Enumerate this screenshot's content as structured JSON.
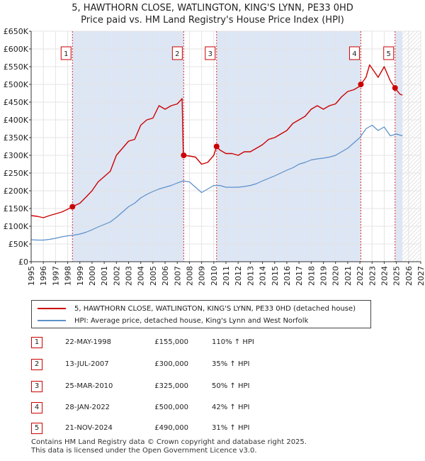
{
  "title_line1": "5, HAWTHORN CLOSE, WATLINGTON, KING'S LYNN, PE33 0HD",
  "title_line2": "Price paid vs. HM Land Registry's House Price Index (HPI)",
  "colors": {
    "property": "#cc0000",
    "hpi": "#5b8fc9",
    "shade": "#dde6f5",
    "hatch": "#cfcfcf"
  },
  "legend": {
    "property_label": "5, HAWTHORN CLOSE, WATLINGTON, KING'S LYNN, PE33 0HD (detached house)",
    "hpi_label": "HPI: Average price, detached house, King's Lynn and West Norfolk"
  },
  "transactions": [
    {
      "num": "1",
      "date": "22-MAY-1998",
      "price": "£155,000",
      "hpi": "110% ↑ HPI"
    },
    {
      "num": "2",
      "date": "13-JUL-2007",
      "price": "£300,000",
      "hpi": "35% ↑ HPI"
    },
    {
      "num": "3",
      "date": "25-MAR-2010",
      "price": "£325,000",
      "hpi": "50% ↑ HPI"
    },
    {
      "num": "4",
      "date": "28-JAN-2022",
      "price": "£500,000",
      "hpi": "42% ↑ HPI"
    },
    {
      "num": "5",
      "date": "21-NOV-2024",
      "price": "£490,000",
      "hpi": "31% ↑ HPI"
    }
  ],
  "footer_line1": "Contains HM Land Registry data © Crown copyright and database right 2025.",
  "footer_line2": "This data is licensed under the Open Government Licence v3.0.",
  "chart_data": {
    "type": "line",
    "title": "5, HAWTHORN CLOSE, WATLINGTON, KING'S LYNN, PE33 0HD",
    "subtitle": "Price paid vs. HM Land Registry's House Price Index (HPI)",
    "xlim": [
      1995,
      2027
    ],
    "ylim": [
      0,
      650000
    ],
    "x_ticks": [
      1995,
      1996,
      1997,
      1998,
      1999,
      2000,
      2001,
      2002,
      2003,
      2004,
      2005,
      2006,
      2007,
      2008,
      2009,
      2010,
      2011,
      2012,
      2013,
      2014,
      2015,
      2016,
      2017,
      2018,
      2019,
      2020,
      2021,
      2022,
      2023,
      2024,
      2025,
      2026,
      2027
    ],
    "y_ticks": [
      0,
      50000,
      100000,
      150000,
      200000,
      250000,
      300000,
      350000,
      400000,
      450000,
      500000,
      550000,
      600000,
      650000
    ],
    "y_tick_labels": [
      "£0",
      "£50K",
      "£100K",
      "£150K",
      "£200K",
      "£250K",
      "£300K",
      "£350K",
      "£400K",
      "£450K",
      "£500K",
      "£550K",
      "£600K",
      "£650K"
    ],
    "grid": true,
    "shaded_periods": [
      [
        1998.39,
        2007.53
      ],
      [
        2010.23,
        2022.08
      ],
      [
        2024.89,
        2025.5
      ]
    ],
    "forecast_start": 2025.5,
    "sales": [
      {
        "label": "1",
        "x": 1998.39,
        "y": 155000
      },
      {
        "label": "2",
        "x": 2007.53,
        "y": 300000
      },
      {
        "label": "3",
        "x": 2010.23,
        "y": 325000
      },
      {
        "label": "4",
        "x": 2022.08,
        "y": 500000
      },
      {
        "label": "5",
        "x": 2024.89,
        "y": 490000
      }
    ],
    "series": [
      {
        "name": "5, HAWTHORN CLOSE, WATLINGTON, KING'S LYNN, PE33 0HD (detached house)",
        "x": [
          1995.0,
          1995.5,
          1996.0,
          1996.5,
          1997.0,
          1997.5,
          1998.0,
          1998.39,
          1999.0,
          1999.5,
          2000.0,
          2000.5,
          2001.0,
          2001.5,
          2002.0,
          2002.5,
          2003.0,
          2003.5,
          2004.0,
          2004.5,
          2005.0,
          2005.5,
          2006.0,
          2006.5,
          2007.0,
          2007.4,
          2007.5,
          2008.0,
          2008.5,
          2009.0,
          2009.5,
          2010.0,
          2010.23,
          2010.5,
          2011.0,
          2011.5,
          2012.0,
          2012.5,
          2013.0,
          2013.5,
          2014.0,
          2014.5,
          2015.0,
          2015.5,
          2016.0,
          2016.5,
          2017.0,
          2017.5,
          2018.0,
          2018.5,
          2019.0,
          2019.5,
          2020.0,
          2020.5,
          2021.0,
          2021.5,
          2022.0,
          2022.08,
          2022.5,
          2022.8,
          2023.0,
          2023.5,
          2024.0,
          2024.5,
          2024.89,
          2025.0,
          2025.3,
          2025.5
        ],
        "y": [
          130000,
          128000,
          124000,
          130000,
          135000,
          140000,
          148000,
          155000,
          165000,
          182000,
          200000,
          225000,
          240000,
          255000,
          300000,
          320000,
          340000,
          345000,
          385000,
          400000,
          405000,
          440000,
          430000,
          440000,
          445000,
          460000,
          300000,
          298000,
          295000,
          275000,
          280000,
          300000,
          325000,
          315000,
          305000,
          305000,
          300000,
          310000,
          310000,
          320000,
          330000,
          345000,
          350000,
          360000,
          370000,
          390000,
          400000,
          410000,
          430000,
          440000,
          430000,
          440000,
          445000,
          465000,
          480000,
          485000,
          495000,
          500000,
          520000,
          555000,
          545000,
          520000,
          550000,
          510000,
          490000,
          485000,
          472000,
          470000
        ]
      },
      {
        "name": "HPI: Average price, detached house, King's Lynn and West Norfolk",
        "x": [
          1995.0,
          1995.5,
          1996.0,
          1996.5,
          1997.0,
          1997.5,
          1998.0,
          1998.5,
          1999.0,
          1999.5,
          2000.0,
          2000.5,
          2001.0,
          2001.5,
          2002.0,
          2002.5,
          2003.0,
          2003.5,
          2004.0,
          2004.5,
          2005.0,
          2005.5,
          2006.0,
          2006.5,
          2007.0,
          2007.5,
          2008.0,
          2008.5,
          2009.0,
          2009.5,
          2010.0,
          2010.5,
          2011.0,
          2011.5,
          2012.0,
          2012.5,
          2013.0,
          2013.5,
          2014.0,
          2014.5,
          2015.0,
          2015.5,
          2016.0,
          2016.5,
          2017.0,
          2017.5,
          2018.0,
          2018.5,
          2019.0,
          2019.5,
          2020.0,
          2020.5,
          2021.0,
          2021.5,
          2022.0,
          2022.5,
          2023.0,
          2023.5,
          2024.0,
          2024.5,
          2025.0,
          2025.5
        ],
        "y": [
          62000,
          61000,
          61000,
          63000,
          66000,
          70000,
          73000,
          75000,
          78000,
          83000,
          90000,
          98000,
          105000,
          112000,
          125000,
          140000,
          155000,
          165000,
          180000,
          190000,
          198000,
          205000,
          210000,
          215000,
          222000,
          228000,
          225000,
          210000,
          195000,
          205000,
          215000,
          215000,
          210000,
          210000,
          210000,
          212000,
          215000,
          220000,
          228000,
          235000,
          242000,
          250000,
          258000,
          265000,
          275000,
          280000,
          287000,
          290000,
          292000,
          295000,
          300000,
          310000,
          320000,
          335000,
          350000,
          375000,
          385000,
          370000,
          380000,
          355000,
          360000,
          355000
        ]
      }
    ]
  }
}
